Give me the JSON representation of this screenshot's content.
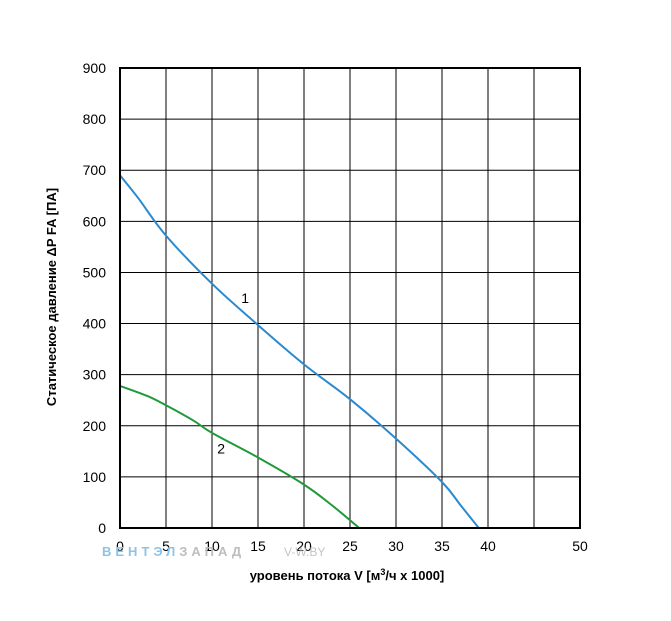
{
  "chart_data": {
    "type": "line",
    "xlabel_prefix": "уровень потока V [м",
    "xlabel_sup": "3",
    "xlabel_suffix": "/ч x 1000]",
    "ylabel": "Статическое давление ΔP FA [ПА]",
    "xlim": [
      0,
      50
    ],
    "ylim": [
      0,
      900
    ],
    "x_ticks": [
      "0",
      "5",
      "10",
      "15",
      "20",
      "25",
      "30",
      "35",
      "40",
      "50"
    ],
    "y_ticks": [
      "0",
      "100",
      "200",
      "300",
      "400",
      "500",
      "600",
      "700",
      "800",
      "900"
    ],
    "grid": true,
    "series": [
      {
        "name": "1",
        "color": "#2a8ad0",
        "points": [
          [
            0,
            690
          ],
          [
            2,
            645
          ],
          [
            5,
            572
          ],
          [
            10,
            478
          ],
          [
            15,
            397
          ],
          [
            20,
            320
          ],
          [
            25,
            252
          ],
          [
            30,
            175
          ],
          [
            35,
            90
          ],
          [
            37,
            45
          ],
          [
            39,
            0
          ]
        ]
      },
      {
        "name": "2",
        "color": "#1f9a3a",
        "points": [
          [
            0,
            278
          ],
          [
            3,
            258
          ],
          [
            5,
            240
          ],
          [
            8,
            210
          ],
          [
            10,
            186
          ],
          [
            15,
            138
          ],
          [
            20,
            85
          ],
          [
            23,
            45
          ],
          [
            26,
            0
          ]
        ]
      }
    ]
  },
  "watermark": {
    "brand_part1": "ВЕНТЭЛ",
    "brand_part2": "ЗАПАД",
    "site": "V-W.BY",
    "color1": "#8ec3e6",
    "color2": "#c4c4c4"
  }
}
